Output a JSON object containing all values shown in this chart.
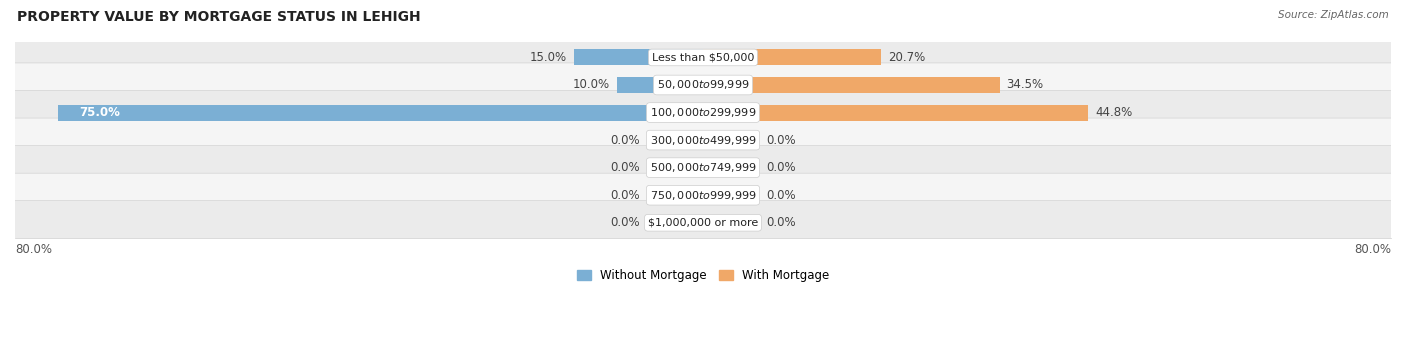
{
  "title": "PROPERTY VALUE BY MORTGAGE STATUS IN LEHIGH",
  "source": "Source: ZipAtlas.com",
  "categories": [
    "Less than $50,000",
    "$50,000 to $99,999",
    "$100,000 to $299,999",
    "$300,000 to $499,999",
    "$500,000 to $749,999",
    "$750,000 to $999,999",
    "$1,000,000 or more"
  ],
  "without_mortgage": [
    15.0,
    10.0,
    75.0,
    0.0,
    0.0,
    0.0,
    0.0
  ],
  "with_mortgage": [
    20.7,
    34.5,
    44.8,
    0.0,
    0.0,
    0.0,
    0.0
  ],
  "without_mortgage_color": "#7bafd4",
  "with_mortgage_color": "#f0a868",
  "without_mortgage_color_zero": "#abc8e0",
  "with_mortgage_color_zero": "#f5c99a",
  "axis_limit": 80.0,
  "zero_stub": 6.5,
  "bar_height": 0.58,
  "label_fontsize": 8.5,
  "title_fontsize": 10.0,
  "category_fontsize": 8.0,
  "source_fontsize": 7.5,
  "legend_fontsize": 8.5
}
